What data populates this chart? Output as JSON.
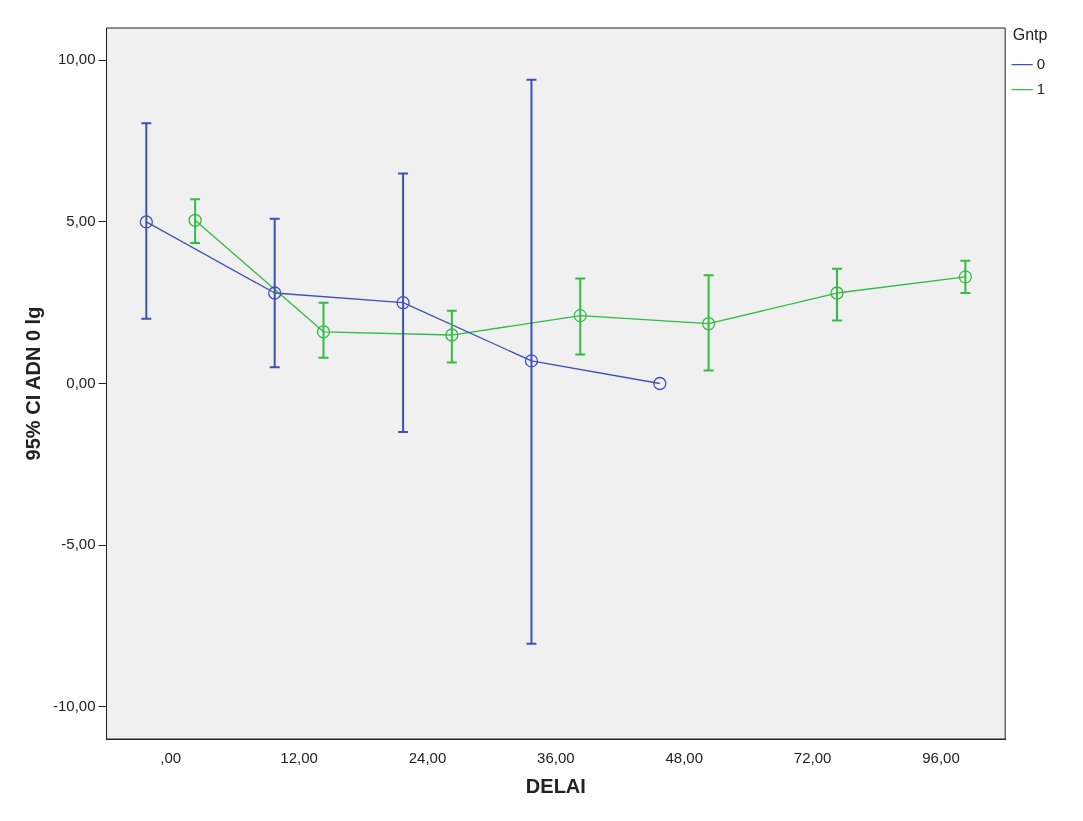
{
  "chart_data": {
    "type": "line",
    "xlabel": "DELAI",
    "ylabel": "95% CI ADN 0 lg",
    "legend_title": "Gntp",
    "categories": [
      ",00",
      "12,00",
      "24,00",
      "36,00",
      "48,00",
      "72,00",
      "96,00"
    ],
    "series": [
      {
        "name": "0",
        "color": "#3f51b5",
        "values": [
          5.0,
          2.8,
          2.5,
          0.7,
          0.0,
          null,
          null
        ],
        "errors": [
          [
            2.0,
            8.05
          ],
          [
            0.5,
            5.1
          ],
          [
            -1.5,
            6.5
          ],
          [
            -8.05,
            9.4
          ],
          null,
          null,
          null
        ]
      },
      {
        "name": "1",
        "color": "#33bb44",
        "values": [
          5.05,
          1.6,
          1.5,
          2.1,
          1.85,
          2.8,
          3.3
        ],
        "errors": [
          [
            4.35,
            5.7
          ],
          [
            0.8,
            2.5
          ],
          [
            0.65,
            2.25
          ],
          [
            0.9,
            3.25
          ],
          [
            0.4,
            3.35
          ],
          [
            1.95,
            3.55
          ],
          [
            2.8,
            3.8
          ]
        ]
      }
    ],
    "ylim": [
      -11,
      11
    ],
    "yticks": [
      {
        "value": -10,
        "label": "-10,00"
      },
      {
        "value": -5,
        "label": "-5,00"
      },
      {
        "value": 0,
        "label": "0,00"
      },
      {
        "value": 5,
        "label": "5,00"
      },
      {
        "value": 10,
        "label": "10,00"
      }
    ],
    "marker": "circle",
    "line_style": "solid",
    "legend": "top right",
    "grid": false
  }
}
